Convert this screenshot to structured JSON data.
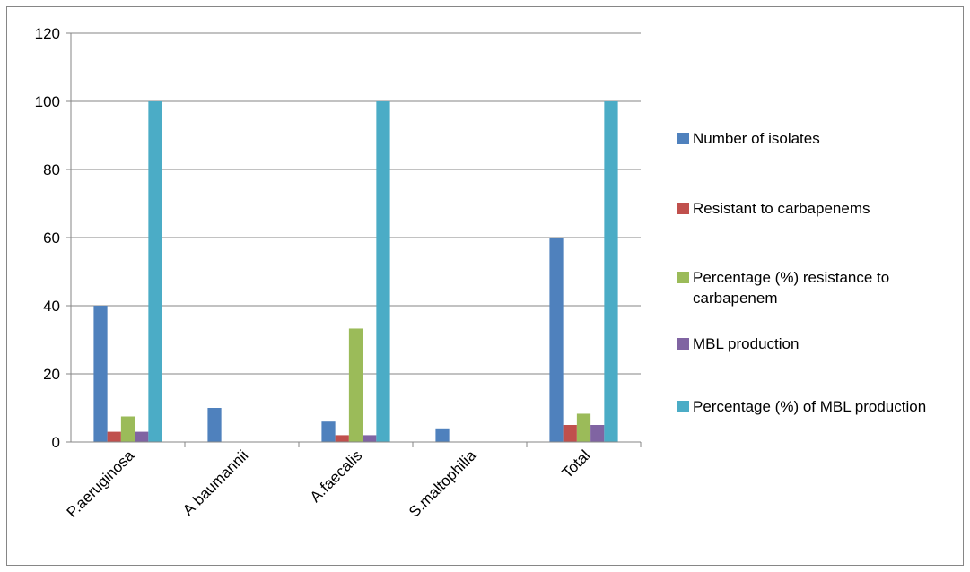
{
  "chart_data": {
    "type": "bar",
    "title": "",
    "xlabel": "",
    "ylabel": "",
    "ylim": [
      0,
      120
    ],
    "yticks": [
      "0",
      "20",
      "40",
      "60",
      "80",
      "100",
      "120"
    ],
    "grid": true,
    "legend_position": "right",
    "categories": [
      "P.aeruginosa",
      "A.baumannii",
      "A.faecalis",
      "S.maltophilia",
      "Total"
    ],
    "series": [
      {
        "name": "Number of isolates",
        "color": "#4F81BD",
        "values": [
          40,
          10,
          6,
          4,
          60
        ]
      },
      {
        "name": "Resistant to carbapenems",
        "color": "#C0504D",
        "values": [
          3,
          0,
          2,
          0,
          5
        ]
      },
      {
        "name": "Percentage (%) resistance to carbapenem",
        "color": "#9BBB59",
        "values": [
          7.5,
          0,
          33.3,
          0,
          8.3
        ]
      },
      {
        "name": "MBL production",
        "color": "#8064A2",
        "values": [
          3,
          0,
          2,
          0,
          5
        ]
      },
      {
        "name": "Percentage (%) of MBL production",
        "color": "#4BACC6",
        "values": [
          100,
          0,
          100,
          0,
          100
        ]
      }
    ]
  }
}
